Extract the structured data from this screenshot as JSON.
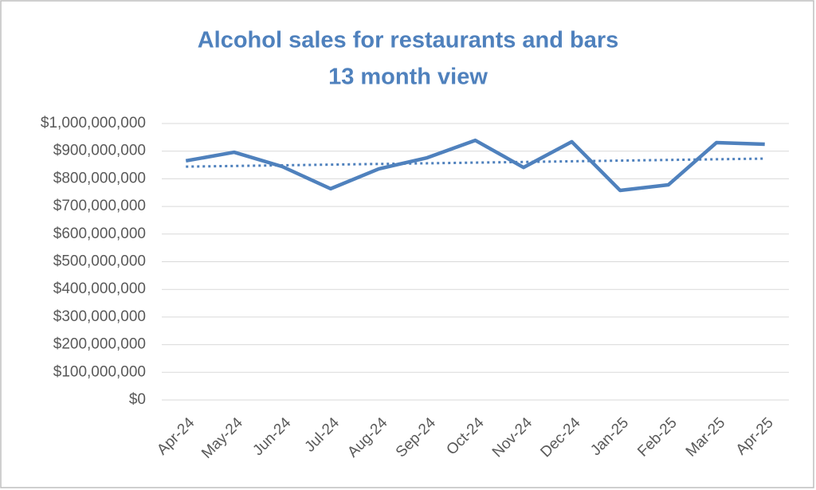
{
  "chart_data": {
    "type": "line",
    "title": [
      "Alcohol sales for restaurants and bars",
      "13 month view"
    ],
    "categories": [
      "Apr-24",
      "May-24",
      "Jun-24",
      "Jul-24",
      "Aug-24",
      "Sep-24",
      "Oct-24",
      "Nov-24",
      "Dec-24",
      "Jan-25",
      "Feb-25",
      "Mar-25",
      "Apr-25"
    ],
    "series": [
      {
        "color": "#4f81bd",
        "values": [
          865000000,
          896000000,
          844000000,
          764000000,
          836000000,
          876000000,
          939000000,
          841000000,
          934000000,
          758000000,
          778000000,
          931000000,
          925000000
        ]
      }
    ],
    "trendline": {
      "color": "#4f81bd",
      "style": "dotted",
      "values": [
        844000000,
        873000000
      ]
    },
    "ylim": [
      0,
      1000000000
    ],
    "yticks": [
      {
        "value": 0,
        "label": "$0"
      },
      {
        "value": 100000000,
        "label": "$100,000,000"
      },
      {
        "value": 200000000,
        "label": "$200,000,000"
      },
      {
        "value": 300000000,
        "label": "$300,000,000"
      },
      {
        "value": 400000000,
        "label": "$400,000,000"
      },
      {
        "value": 500000000,
        "label": "$500,000,000"
      },
      {
        "value": 600000000,
        "label": "$600,000,000"
      },
      {
        "value": 700000000,
        "label": "$700,000,000"
      },
      {
        "value": 800000000,
        "label": "$800,000,000"
      },
      {
        "value": 900000000,
        "label": "$900,000,000"
      },
      {
        "value": 1000000000,
        "label": "$1,000,000,000"
      }
    ],
    "grid": true
  }
}
